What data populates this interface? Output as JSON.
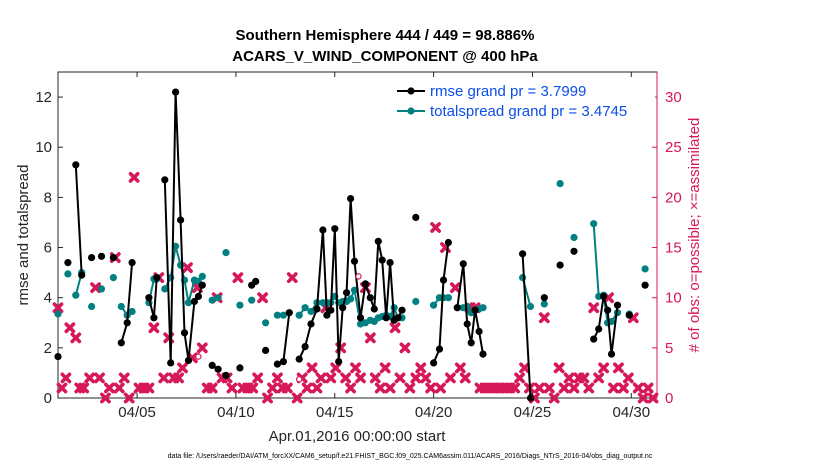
{
  "chart_data": {
    "type": "line",
    "title": [
      "Southern Hemisphere 444 / 449 = 98.886%",
      "ACARS_V_WIND_COMPONENT @ 400 hPa"
    ],
    "xlabel": "Apr.01,2016 00:00:00 start",
    "ylabel": "rmse and totalspread",
    "y2label": "# of obs: o=possible; ×=assimilated",
    "footnote": "data file: /Users/raeder/DAI/ATM_forcXX/CAM6_setup/f.e21.FHIST_BGC.f09_025.CAM6assim.011/ACARS_2016/Diags_NTrS_2016-04/obs_diag_output.nc",
    "xlim": [
      1.0,
      31.3
    ],
    "ylim": [
      0,
      13
    ],
    "y2lim": [
      0,
      32.5
    ],
    "x_ticks": [
      5,
      10,
      15,
      20,
      25,
      30
    ],
    "x_ticklabels": [
      "04/05",
      "04/10",
      "04/15",
      "04/20",
      "04/25",
      "04/30"
    ],
    "y_ticks": [
      0,
      2,
      4,
      6,
      8,
      10,
      12
    ],
    "y2_ticks": [
      0,
      5,
      10,
      15,
      20,
      25,
      30
    ],
    "legend": {
      "placement": "top-right"
    },
    "colors": {
      "rmse": "#000000",
      "spread": "#008080",
      "obs": "#d6185a",
      "legend_text": "#0b4ee8",
      "right_axis": "#d6185a"
    },
    "series": [
      {
        "name": "rmse grand pr = 3.7999",
        "segments": [
          [
            [
              1.0,
              1.65
            ]
          ],
          [
            [
              1.5,
              5.4
            ]
          ],
          [
            [
              1.9,
              9.3
            ],
            [
              2.2,
              4.9
            ]
          ],
          [
            [
              2.7,
              5.6
            ]
          ],
          [
            [
              3.2,
              5.65
            ]
          ],
          [
            [
              3.8,
              5.6
            ]
          ],
          [
            [
              4.2,
              2.2
            ],
            [
              4.5,
              3.0
            ],
            [
              4.75,
              5.4
            ]
          ],
          [
            [
              5.6,
              4.0
            ],
            [
              5.85,
              3.2
            ],
            [
              6.0,
              4.8
            ]
          ],
          [
            [
              6.4,
              8.7
            ],
            [
              6.7,
              1.4
            ],
            [
              6.95,
              12.2
            ],
            [
              7.2,
              7.1
            ],
            [
              7.4,
              2.6
            ],
            [
              7.6,
              1.5
            ],
            [
              7.9,
              3.85
            ],
            [
              8.1,
              4.05
            ],
            [
              8.3,
              4.5
            ]
          ],
          [
            [
              8.8,
              1.3
            ],
            [
              9.1,
              1.15
            ]
          ],
          [
            [
              9.5,
              0.9
            ]
          ],
          [
            [
              10.2,
              1.2
            ]
          ],
          [
            [
              10.8,
              4.5
            ],
            [
              11.0,
              4.65
            ]
          ],
          [
            [
              11.5,
              1.9
            ]
          ],
          [
            [
              12.1,
              1.35
            ],
            [
              12.4,
              1.45
            ],
            [
              12.7,
              3.4
            ]
          ],
          [
            [
              13.2,
              1.55
            ],
            [
              13.5,
              2.05
            ],
            [
              13.8,
              2.95
            ],
            [
              14.1,
              3.55
            ],
            [
              14.4,
              6.7
            ],
            [
              14.6,
              3.3
            ],
            [
              14.8,
              3.5
            ],
            [
              15.0,
              6.75
            ],
            [
              15.2,
              1.45
            ],
            [
              15.4,
              3.6
            ],
            [
              15.6,
              4.2
            ],
            [
              15.8,
              7.95
            ],
            [
              16.0,
              5.45
            ],
            [
              16.3,
              3.2
            ],
            [
              16.55,
              4.55
            ],
            [
              16.8,
              4.0
            ],
            [
              17.0,
              3.55
            ],
            [
              17.2,
              6.25
            ],
            [
              17.4,
              5.5
            ],
            [
              17.6,
              3.2
            ],
            [
              17.8,
              5.4
            ],
            [
              18.0,
              3.1
            ],
            [
              18.2,
              3.2
            ],
            [
              18.4,
              3.5
            ]
          ],
          [
            [
              19.1,
              7.2
            ]
          ],
          [
            [
              20.0,
              1.4
            ],
            [
              20.3,
              1.95
            ],
            [
              20.5,
              4.7
            ],
            [
              20.75,
              6.2
            ]
          ],
          [
            [
              21.2,
              3.6
            ],
            [
              21.5,
              5.35
            ],
            [
              21.7,
              2.95
            ],
            [
              21.9,
              2.2
            ],
            [
              22.1,
              3.5
            ],
            [
              22.3,
              2.65
            ],
            [
              22.5,
              1.75
            ]
          ],
          [
            [
              24.5,
              5.75
            ],
            [
              24.9,
              0.0
            ]
          ],
          [
            [
              25.6,
              4.0
            ]
          ],
          [
            [
              26.4,
              5.3
            ]
          ],
          [
            [
              27.1,
              5.85
            ]
          ],
          [
            [
              28.1,
              2.35
            ],
            [
              28.35,
              2.75
            ],
            [
              28.6,
              4.05
            ],
            [
              28.8,
              3.5
            ],
            [
              29.0,
              1.75
            ],
            [
              29.3,
              3.7
            ]
          ],
          [
            [
              29.9,
              3.3
            ]
          ],
          [
            [
              30.7,
              4.5
            ]
          ]
        ]
      },
      {
        "name": "totalspread grand pr = 3.4745",
        "segments": [
          [
            [
              1.0,
              3.35
            ]
          ],
          [
            [
              1.5,
              4.95
            ]
          ],
          [
            [
              1.9,
              4.1
            ],
            [
              2.2,
              5.0
            ]
          ],
          [
            [
              2.7,
              3.65
            ]
          ],
          [
            [
              3.2,
              4.35
            ]
          ],
          [
            [
              3.8,
              4.8
            ]
          ],
          [
            [
              4.2,
              3.65
            ],
            [
              4.5,
              3.3
            ],
            [
              4.75,
              3.45
            ]
          ],
          [
            [
              5.6,
              3.8
            ],
            [
              5.85,
              4.75
            ],
            [
              6.0,
              4.75
            ]
          ],
          [
            [
              6.4,
              4.35
            ],
            [
              6.7,
              4.8
            ],
            [
              6.95,
              6.05
            ],
            [
              7.2,
              5.3
            ],
            [
              7.4,
              4.7
            ],
            [
              7.6,
              3.8
            ],
            [
              7.9,
              4.7
            ],
            [
              8.1,
              4.65
            ],
            [
              8.3,
              4.85
            ]
          ],
          [
            [
              8.8,
              3.9
            ],
            [
              9.1,
              4.0
            ]
          ],
          [
            [
              9.5,
              5.8
            ]
          ],
          [
            [
              10.2,
              3.7
            ]
          ],
          [
            [
              10.8,
              3.9
            ]
          ],
          [
            [
              11.5,
              3.0
            ]
          ],
          [
            [
              12.1,
              3.3
            ],
            [
              12.4,
              3.3
            ]
          ],
          [
            [
              13.2,
              3.3
            ],
            [
              13.5,
              3.6
            ],
            [
              13.8,
              3.45
            ],
            [
              14.1,
              3.8
            ],
            [
              14.4,
              3.8
            ],
            [
              14.6,
              3.8
            ],
            [
              14.8,
              3.8
            ],
            [
              15.0,
              4.05
            ],
            [
              15.2,
              3.8
            ],
            [
              15.4,
              3.85
            ],
            [
              15.6,
              3.85
            ],
            [
              15.8,
              3.95
            ],
            [
              16.0,
              4.3
            ],
            [
              16.3,
              2.95
            ],
            [
              16.55,
              3.0
            ],
            [
              16.8,
              3.1
            ],
            [
              17.0,
              3.05
            ],
            [
              17.2,
              3.2
            ],
            [
              17.4,
              3.25
            ],
            [
              17.6,
              3.3
            ],
            [
              17.8,
              3.25
            ],
            [
              18.0,
              3.6
            ],
            [
              18.2,
              3.2
            ],
            [
              18.4,
              3.2
            ]
          ],
          [
            [
              19.1,
              3.85
            ]
          ],
          [
            [
              20.0,
              3.7
            ],
            [
              20.3,
              4.0
            ],
            [
              20.5,
              4.0
            ],
            [
              20.75,
              4.0
            ]
          ],
          [
            [
              21.2,
              3.6
            ],
            [
              21.5,
              3.6
            ],
            [
              21.7,
              3.65
            ],
            [
              21.9,
              3.4
            ],
            [
              22.1,
              3.5
            ],
            [
              22.3,
              3.55
            ],
            [
              22.5,
              3.6
            ]
          ],
          [
            [
              24.5,
              4.8
            ],
            [
              24.9,
              3.65
            ]
          ],
          [
            [
              25.6,
              3.75
            ]
          ],
          [
            [
              26.4,
              8.55
            ]
          ],
          [
            [
              27.1,
              6.4
            ]
          ],
          [
            [
              28.1,
              6.95
            ],
            [
              28.35,
              4.05
            ],
            [
              28.6,
              4.1
            ],
            [
              28.8,
              3.0
            ],
            [
              29.0,
              3.05
            ],
            [
              29.3,
              3.4
            ]
          ],
          [
            [
              29.9,
              3.35
            ]
          ],
          [
            [
              30.7,
              5.15
            ]
          ]
        ]
      }
    ],
    "assimilated_obs": {
      "x": [
        1.0,
        1.2,
        1.4,
        1.6,
        1.9,
        2.1,
        2.3,
        2.6,
        2.9,
        3.1,
        3.4,
        3.6,
        3.9,
        4.1,
        4.35,
        4.6,
        4.85,
        5.1,
        5.35,
        5.6,
        5.85,
        6.1,
        6.35,
        6.6,
        6.85,
        7.1,
        7.3,
        7.55,
        7.8,
        8.05,
        8.3,
        8.55,
        8.8,
        9.05,
        9.3,
        9.55,
        9.8,
        10.1,
        10.35,
        10.6,
        10.85,
        11.1,
        11.35,
        11.6,
        11.85,
        12.1,
        12.35,
        12.6,
        12.85,
        13.1,
        13.35,
        13.6,
        13.85,
        14.1,
        14.3,
        14.55,
        14.8,
        15.05,
        15.3,
        15.55,
        15.8,
        16.05,
        16.3,
        16.55,
        16.8,
        17.05,
        17.3,
        17.55,
        17.8,
        18.05,
        18.3,
        18.55,
        18.8,
        19.1,
        19.35,
        19.6,
        19.85,
        20.1,
        20.35,
        20.6,
        20.85,
        21.1,
        21.35,
        21.6,
        21.85,
        22.1,
        22.35,
        22.6,
        22.85,
        23.1,
        23.35,
        23.6,
        23.85,
        24.1,
        24.35,
        24.6,
        24.85,
        25.1,
        25.35,
        25.6,
        25.85,
        26.1,
        26.35,
        26.6,
        26.85,
        27.1,
        27.35,
        27.6,
        27.85,
        28.1,
        28.35,
        28.6,
        28.85,
        29.1,
        29.35,
        29.6,
        29.85,
        30.1,
        30.35,
        30.6,
        30.85,
        31.1
      ],
      "y": [
        9,
        1,
        2,
        7,
        6,
        1,
        1,
        2,
        11,
        2,
        0,
        1,
        14,
        1,
        2,
        0,
        22,
        1,
        1,
        1,
        7,
        12,
        2,
        6,
        2,
        2,
        3,
        13,
        4,
        11,
        5,
        1,
        1,
        10,
        2,
        2,
        1,
        12,
        1,
        1,
        1,
        2,
        10,
        0,
        1,
        2,
        1,
        1,
        12,
        0,
        2,
        1,
        3,
        1,
        2,
        9,
        2,
        3,
        5,
        2,
        1,
        3,
        2,
        11,
        6,
        2,
        1,
        3,
        1,
        7,
        2,
        5,
        1,
        2,
        3,
        2,
        1,
        17,
        1,
        15,
        2,
        11,
        3,
        2,
        9,
        9,
        1,
        1,
        1,
        1,
        1,
        1,
        1,
        1,
        2,
        3,
        1,
        0,
        1,
        8,
        1,
        0,
        3,
        1,
        2,
        1,
        2,
        2,
        1,
        9,
        2,
        3,
        10,
        1,
        3,
        1,
        2,
        8,
        1,
        0,
        1,
        0
      ]
    },
    "possible_obs_markers": [
      {
        "x": 8.1,
        "y": 1.65,
        "symbol": "open-circle"
      },
      {
        "x": 13.2,
        "y": 0.75,
        "symbol": "open-circle"
      },
      {
        "x": 16.2,
        "y": 4.85,
        "symbol": "open-circle"
      }
    ]
  }
}
